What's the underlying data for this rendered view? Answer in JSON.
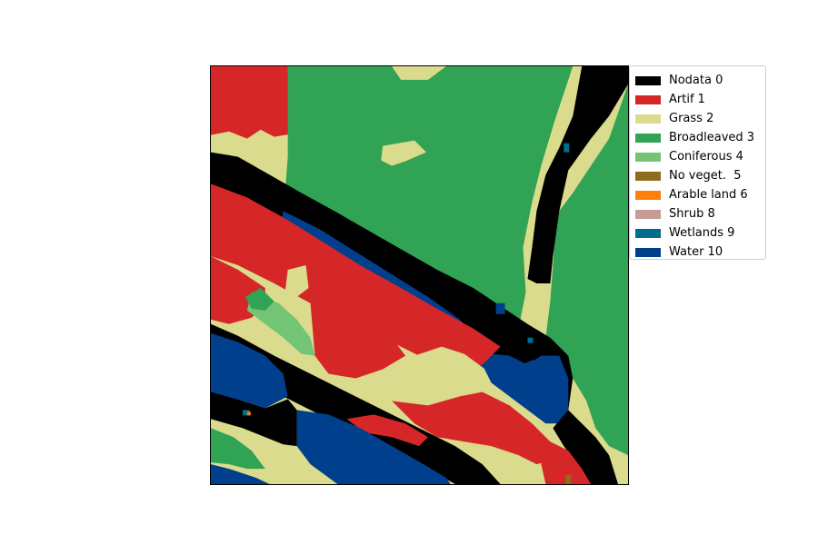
{
  "map": {
    "name": "land-cover-classification-map",
    "background_class": "Grass 2"
  },
  "legend": {
    "placement": "upper-right-outside",
    "items": [
      {
        "label": "Nodata 0",
        "color": "#000000"
      },
      {
        "label": "Artif 1",
        "color": "#d62728"
      },
      {
        "label": "Grass 2",
        "color": "#dbdb8d"
      },
      {
        "label": "Broadleaved 3",
        "color": "#31a354"
      },
      {
        "label": "Coniferous 4",
        "color": "#74c476"
      },
      {
        "label": "No veget.  5",
        "color": "#8c6d1f"
      },
      {
        "label": "Arable land 6",
        "color": "#ff7f0e"
      },
      {
        "label": "Shrub 8",
        "color": "#c49c94"
      },
      {
        "label": "Wetlands 9",
        "color": "#006d8f"
      },
      {
        "label": "Water 10",
        "color": "#003f8c"
      }
    ]
  }
}
